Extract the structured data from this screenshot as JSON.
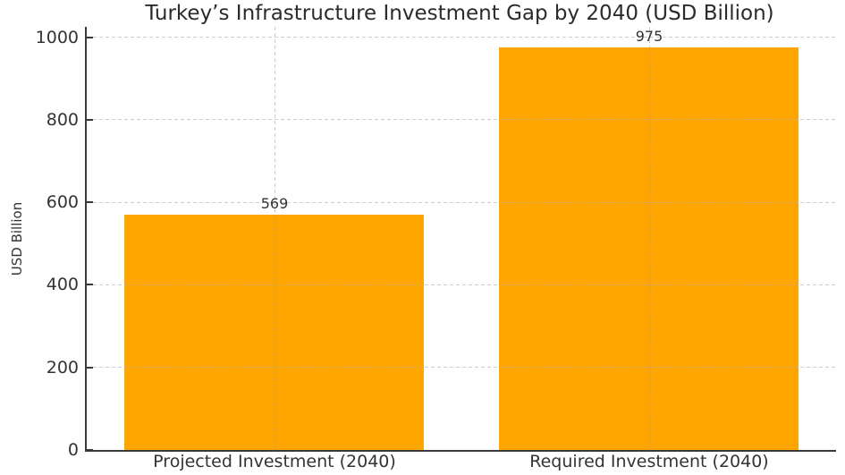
{
  "chart_data": {
    "type": "bar",
    "title": "Turkey’s Infrastructure Investment Gap by 2040 (USD Billion)",
    "xlabel": "",
    "ylabel": "USD Billion",
    "categories": [
      "Projected Investment (2040)",
      "Required Investment (2040)"
    ],
    "values": [
      569,
      975
    ],
    "value_labels": [
      "569",
      "975"
    ],
    "yticks": [
      0,
      200,
      400,
      600,
      800,
      1000
    ],
    "ytick_labels": [
      "0",
      "200",
      "400",
      "600",
      "800",
      "1000"
    ],
    "ylim": [
      0,
      1025
    ],
    "grid": "dashed-both-axes",
    "legend": "none",
    "colors": {
      "bar": "#FFA500",
      "axis_spine": "#3a3a3a",
      "grid_line": "#c9c9c9",
      "tick_text": "#333333",
      "title_text": "#2b2b2b",
      "background": "#ffffff"
    }
  }
}
